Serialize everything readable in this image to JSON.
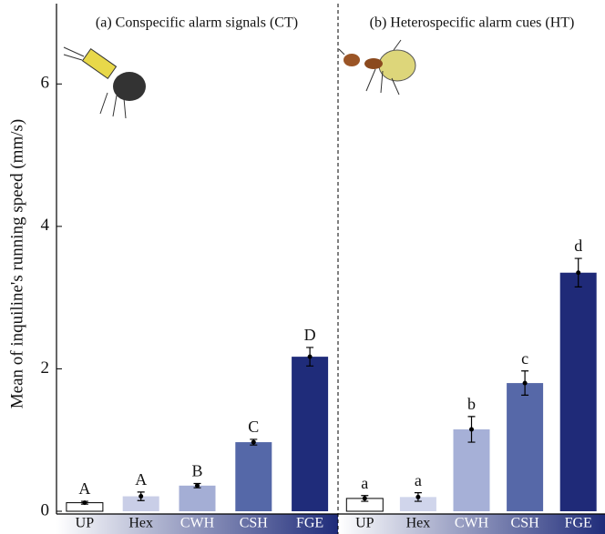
{
  "chart_data": [
    {
      "type": "bar",
      "title": "(a) Conspecific alarm signals (CT)",
      "ylabel": "Mean of inquiline's running speed (mm/s)",
      "categories": [
        "UP",
        "Hex",
        "CWH",
        "CSH",
        "FGE"
      ],
      "values": [
        0.12,
        0.21,
        0.36,
        0.97,
        2.17
      ],
      "errors": [
        0.02,
        0.06,
        0.03,
        0.04,
        0.13
      ],
      "labels": [
        "A",
        "A",
        "B",
        "C",
        "D"
      ],
      "colors": [
        "#ffffff",
        "#c9cee7",
        "#a4aed5",
        "#5568a8",
        "#1f2c7a"
      ],
      "ylim": [
        0,
        7
      ],
      "yticks": [
        0,
        2,
        4,
        6
      ]
    },
    {
      "type": "bar",
      "title": "(b) Heterospecific alarm cues (HT)",
      "categories": [
        "UP",
        "Hex",
        "CWH",
        "CSH",
        "FGE"
      ],
      "values": [
        0.18,
        0.2,
        1.15,
        1.8,
        3.35
      ],
      "errors": [
        0.04,
        0.06,
        0.18,
        0.17,
        0.2
      ],
      "labels": [
        "a",
        "a",
        "b",
        "c",
        "d"
      ],
      "colors": [
        "#ffffff",
        "#d0d5eb",
        "#a6b0d7",
        "#5668a8",
        "#1f2a78"
      ],
      "ylim": [
        0,
        7
      ]
    }
  ]
}
